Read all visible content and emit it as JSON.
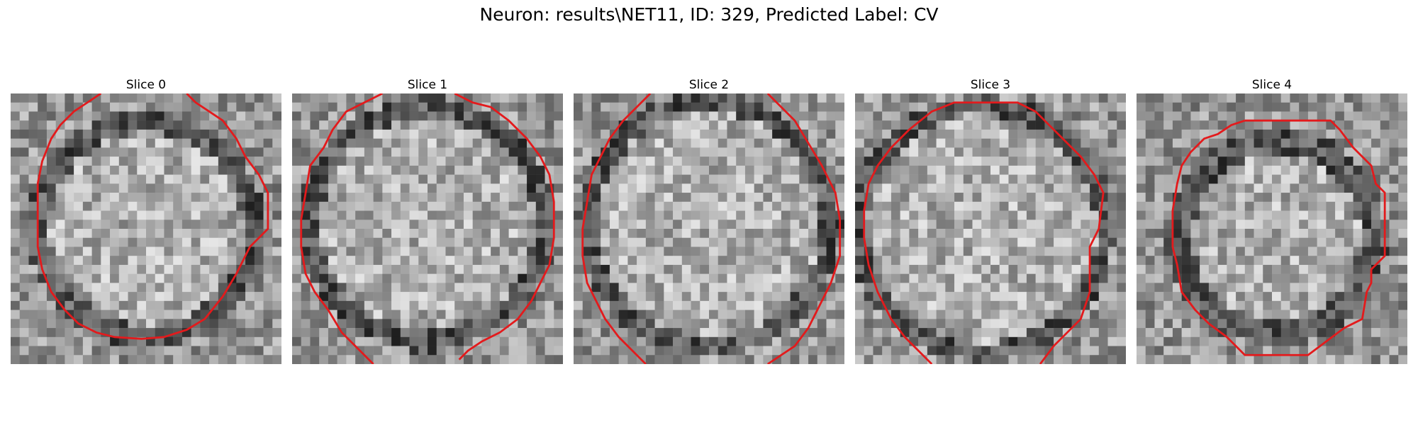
{
  "figure": {
    "suptitle": "Neuron: results\\NET11, ID: 329, Predicted Label: CV"
  },
  "slices": [
    {
      "title": "Slice 0"
    },
    {
      "title": "Slice 1"
    },
    {
      "title": "Slice 2"
    },
    {
      "title": "Slice 3"
    },
    {
      "title": "Slice 4"
    }
  ],
  "colors": {
    "contour": "#e31a1c",
    "background": "#ffffff",
    "grayscale_min": "#0a0a0a",
    "grayscale_max": "#f0f0f0"
  },
  "image_description_grid": "30x30 grayscale pixels per slice"
}
